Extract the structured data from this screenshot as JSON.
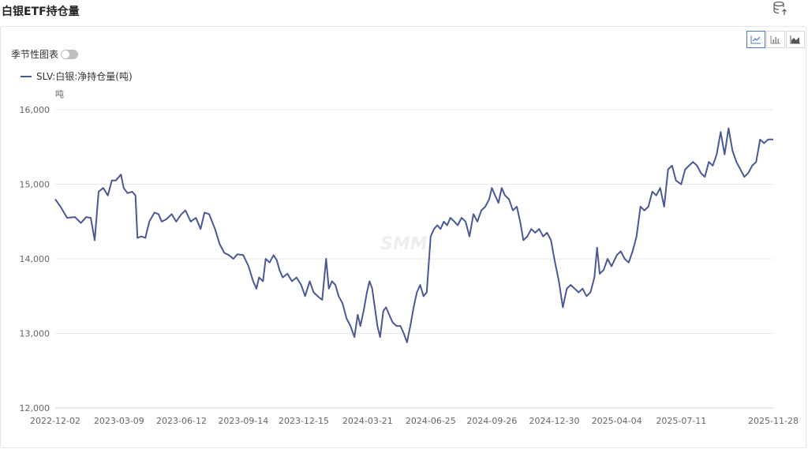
{
  "page": {
    "title": "白银ETF持仓量"
  },
  "toolbar": {
    "seasonal_label": "季节性图表",
    "seasonal_on": false
  },
  "icons": {
    "export": "database-export-icon",
    "line": "line-chart-icon",
    "bar": "bar-chart-icon",
    "area": "area-chart-icon"
  },
  "colors": {
    "series": "#4a5896",
    "grid": "#e8e8e8",
    "axis_text": "#666666"
  },
  "watermark": "SMM",
  "chart_data": {
    "type": "line",
    "title": "",
    "ylabel": "吨",
    "ylim": [
      12000,
      16000
    ],
    "yticks": [
      "12,000",
      "13,000",
      "14,000",
      "15,000",
      "16,000"
    ],
    "xticks": [
      "2022-12-02",
      "2023-03-09",
      "2023-06-12",
      "2023-09-14",
      "2023-12-15",
      "2024-03-21",
      "2024-06-25",
      "2024-09-26",
      "2024-12-30",
      "2025-04-04",
      "2025-07-11",
      "2025-11-28"
    ],
    "legend_position": "top-left",
    "grid": true,
    "series": [
      {
        "name": "SLV:白银:净持仓量(吨)",
        "points": [
          [
            "2022-12-02",
            14800
          ],
          [
            "2022-12-10",
            14700
          ],
          [
            "2022-12-20",
            14550
          ],
          [
            "2023-01-01",
            14560
          ],
          [
            "2023-01-10",
            14480
          ],
          [
            "2023-01-18",
            14560
          ],
          [
            "2023-01-25",
            14550
          ],
          [
            "2023-01-31",
            14250
          ],
          [
            "2023-02-06",
            14900
          ],
          [
            "2023-02-13",
            14950
          ],
          [
            "2023-02-20",
            14850
          ],
          [
            "2023-02-26",
            15050
          ],
          [
            "2023-03-04",
            15050
          ],
          [
            "2023-03-12",
            15130
          ],
          [
            "2023-03-16",
            14950
          ],
          [
            "2023-03-22",
            14880
          ],
          [
            "2023-03-29",
            14900
          ],
          [
            "2023-04-03",
            14850
          ],
          [
            "2023-04-06",
            14280
          ],
          [
            "2023-04-12",
            14300
          ],
          [
            "2023-04-18",
            14280
          ],
          [
            "2023-04-24",
            14500
          ],
          [
            "2023-05-02",
            14620
          ],
          [
            "2023-05-08",
            14600
          ],
          [
            "2023-05-13",
            14500
          ],
          [
            "2023-05-20",
            14530
          ],
          [
            "2023-05-28",
            14600
          ],
          [
            "2023-06-04",
            14500
          ],
          [
            "2023-06-12",
            14600
          ],
          [
            "2023-06-18",
            14650
          ],
          [
            "2023-06-26",
            14500
          ],
          [
            "2023-07-04",
            14550
          ],
          [
            "2023-07-11",
            14400
          ],
          [
            "2023-07-17",
            14620
          ],
          [
            "2023-07-24",
            14600
          ],
          [
            "2023-08-02",
            14400
          ],
          [
            "2023-08-09",
            14200
          ],
          [
            "2023-08-16",
            14080
          ],
          [
            "2023-08-23",
            14050
          ],
          [
            "2023-08-30",
            14000
          ],
          [
            "2023-09-05",
            14060
          ],
          [
            "2023-09-14",
            14050
          ],
          [
            "2023-09-22",
            13900
          ],
          [
            "2023-09-29",
            13700
          ],
          [
            "2023-10-04",
            13600
          ],
          [
            "2023-10-08",
            13750
          ],
          [
            "2023-10-14",
            13700
          ],
          [
            "2023-10-18",
            14000
          ],
          [
            "2023-10-24",
            13950
          ],
          [
            "2023-10-30",
            14050
          ],
          [
            "2023-11-04",
            13980
          ],
          [
            "2023-11-08",
            13850
          ],
          [
            "2023-11-13",
            13750
          ],
          [
            "2023-11-20",
            13800
          ],
          [
            "2023-11-27",
            13700
          ],
          [
            "2023-12-04",
            13750
          ],
          [
            "2023-12-11",
            13650
          ],
          [
            "2023-12-17",
            13500
          ],
          [
            "2023-12-24",
            13700
          ],
          [
            "2023-12-30",
            13550
          ],
          [
            "2024-01-05",
            13500
          ],
          [
            "2024-01-12",
            13450
          ],
          [
            "2024-01-18",
            14000
          ],
          [
            "2024-01-22",
            13600
          ],
          [
            "2024-01-27",
            13700
          ],
          [
            "2024-02-01",
            13650
          ],
          [
            "2024-02-06",
            13500
          ],
          [
            "2024-02-12",
            13400
          ],
          [
            "2024-02-18",
            13200
          ],
          [
            "2024-02-24",
            13100
          ],
          [
            "2024-03-01",
            12950
          ],
          [
            "2024-03-06",
            13250
          ],
          [
            "2024-03-10",
            13100
          ],
          [
            "2024-03-15",
            13300
          ],
          [
            "2024-03-20",
            13550
          ],
          [
            "2024-03-24",
            13700
          ],
          [
            "2024-03-28",
            13600
          ],
          [
            "2024-04-01",
            13350
          ],
          [
            "2024-04-05",
            13100
          ],
          [
            "2024-04-09",
            12950
          ],
          [
            "2024-04-14",
            13300
          ],
          [
            "2024-04-18",
            13350
          ],
          [
            "2024-04-23",
            13250
          ],
          [
            "2024-04-28",
            13150
          ],
          [
            "2024-05-04",
            13100
          ],
          [
            "2024-05-10",
            13100
          ],
          [
            "2024-05-15",
            13000
          ],
          [
            "2024-05-20",
            12880
          ],
          [
            "2024-05-25",
            13100
          ],
          [
            "2024-05-30",
            13350
          ],
          [
            "2024-06-04",
            13550
          ],
          [
            "2024-06-09",
            13650
          ],
          [
            "2024-06-14",
            13500
          ],
          [
            "2024-06-19",
            13550
          ],
          [
            "2024-06-25",
            14300
          ],
          [
            "2024-06-30",
            14400
          ],
          [
            "2024-07-05",
            14450
          ],
          [
            "2024-07-10",
            14400
          ],
          [
            "2024-07-15",
            14500
          ],
          [
            "2024-07-20",
            14450
          ],
          [
            "2024-07-25",
            14550
          ],
          [
            "2024-07-31",
            14500
          ],
          [
            "2024-08-05",
            14450
          ],
          [
            "2024-08-11",
            14550
          ],
          [
            "2024-08-17",
            14500
          ],
          [
            "2024-08-23",
            14300
          ],
          [
            "2024-08-29",
            14600
          ],
          [
            "2024-09-04",
            14500
          ],
          [
            "2024-09-10",
            14650
          ],
          [
            "2024-09-16",
            14700
          ],
          [
            "2024-09-22",
            14800
          ],
          [
            "2024-09-26",
            14950
          ],
          [
            "2024-10-01",
            14850
          ],
          [
            "2024-10-06",
            14750
          ],
          [
            "2024-10-11",
            14950
          ],
          [
            "2024-10-16",
            14850
          ],
          [
            "2024-10-22",
            14800
          ],
          [
            "2024-10-28",
            14650
          ],
          [
            "2024-11-03",
            14700
          ],
          [
            "2024-11-08",
            14500
          ],
          [
            "2024-11-13",
            14250
          ],
          [
            "2024-11-19",
            14300
          ],
          [
            "2024-11-25",
            14400
          ],
          [
            "2024-12-01",
            14350
          ],
          [
            "2024-12-07",
            14400
          ],
          [
            "2024-12-13",
            14300
          ],
          [
            "2024-12-19",
            14350
          ],
          [
            "2024-12-25",
            14250
          ],
          [
            "2024-12-30",
            14000
          ],
          [
            "2025-01-06",
            13700
          ],
          [
            "2025-01-12",
            13350
          ],
          [
            "2025-01-18",
            13600
          ],
          [
            "2025-01-24",
            13650
          ],
          [
            "2025-01-30",
            13600
          ],
          [
            "2025-02-05",
            13550
          ],
          [
            "2025-02-11",
            13600
          ],
          [
            "2025-02-17",
            13500
          ],
          [
            "2025-02-23",
            13550
          ],
          [
            "2025-03-01",
            13750
          ],
          [
            "2025-03-05",
            14150
          ],
          [
            "2025-03-09",
            13800
          ],
          [
            "2025-03-15",
            13850
          ],
          [
            "2025-03-21",
            14000
          ],
          [
            "2025-03-27",
            13900
          ],
          [
            "2025-04-04",
            14050
          ],
          [
            "2025-04-10",
            14100
          ],
          [
            "2025-04-16",
            14000
          ],
          [
            "2025-04-22",
            13950
          ],
          [
            "2025-04-28",
            14100
          ],
          [
            "2025-05-04",
            14300
          ],
          [
            "2025-05-10",
            14700
          ],
          [
            "2025-05-16",
            14650
          ],
          [
            "2025-05-22",
            14700
          ],
          [
            "2025-05-28",
            14900
          ],
          [
            "2025-06-03",
            14850
          ],
          [
            "2025-06-09",
            14950
          ],
          [
            "2025-06-15",
            14700
          ],
          [
            "2025-06-21",
            15200
          ],
          [
            "2025-06-27",
            15250
          ],
          [
            "2025-07-03",
            15050
          ],
          [
            "2025-07-11",
            15000
          ],
          [
            "2025-07-17",
            15200
          ],
          [
            "2025-07-23",
            15250
          ],
          [
            "2025-07-29",
            15300
          ],
          [
            "2025-08-04",
            15250
          ],
          [
            "2025-08-10",
            15150
          ],
          [
            "2025-08-16",
            15100
          ],
          [
            "2025-08-22",
            15300
          ],
          [
            "2025-08-28",
            15250
          ],
          [
            "2025-09-03",
            15400
          ],
          [
            "2025-09-09",
            15700
          ],
          [
            "2025-09-15",
            15400
          ],
          [
            "2025-09-21",
            15750
          ],
          [
            "2025-09-27",
            15450
          ],
          [
            "2025-10-03",
            15300
          ],
          [
            "2025-10-09",
            15200
          ],
          [
            "2025-10-15",
            15100
          ],
          [
            "2025-10-21",
            15150
          ],
          [
            "2025-10-27",
            15250
          ],
          [
            "2025-11-02",
            15300
          ],
          [
            "2025-11-08",
            15600
          ],
          [
            "2025-11-14",
            15550
          ],
          [
            "2025-11-20",
            15600
          ],
          [
            "2025-11-28",
            15600
          ]
        ]
      }
    ]
  }
}
